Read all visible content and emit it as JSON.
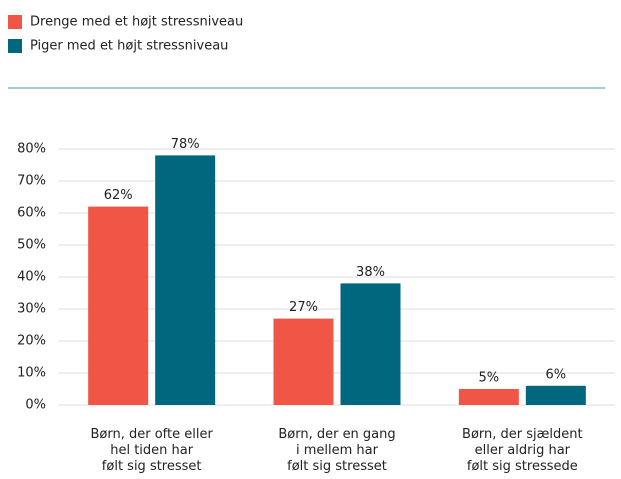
{
  "chart_data": {
    "type": "bar",
    "categories": [
      "Børn, der ofte eller\nhel tiden har\nfølt sig stresset",
      "Børn, der en gang\ni mellem har\nfølt sig stresset",
      "Børn, der sjældent\neller aldrig har\nfølt sig stressede"
    ],
    "series": [
      {
        "name": "Drenge med et højt stressniveau",
        "color": "#f05545",
        "values": [
          62,
          27,
          5
        ],
        "value_labels": [
          "62%",
          "27%",
          "5%"
        ]
      },
      {
        "name": "Piger med et højt stressniveau",
        "color": "#00677f",
        "values": [
          78,
          38,
          6
        ],
        "value_labels": [
          "78%",
          "38%",
          "6%"
        ]
      }
    ],
    "ylim": [
      0,
      80
    ],
    "yticks": [
      {
        "value": 0,
        "label": "0%"
      },
      {
        "value": 10,
        "label": "10%"
      },
      {
        "value": 20,
        "label": "20%"
      },
      {
        "value": 30,
        "label": "30%"
      },
      {
        "value": 40,
        "label": "40%"
      },
      {
        "value": 50,
        "label": "50%"
      },
      {
        "value": 60,
        "label": "60%"
      },
      {
        "value": 70,
        "label": "70%"
      },
      {
        "value": 80,
        "label": "80%"
      }
    ],
    "grid": true,
    "legend": "top-left"
  }
}
